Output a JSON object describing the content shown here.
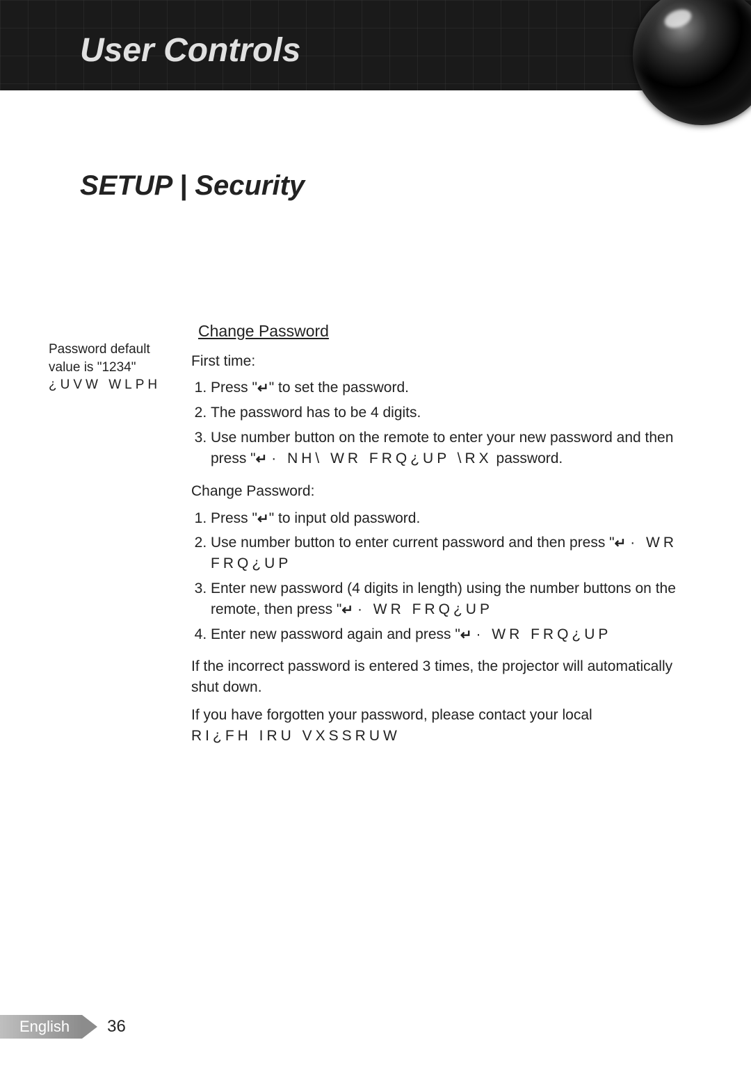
{
  "header": {
    "title": "User Controls"
  },
  "section": {
    "title": "SETUP | Security"
  },
  "sidebar": {
    "note_line1": "Password default value is \"1234\"",
    "note_garbled": "¿UVW WLPH"
  },
  "main": {
    "heading": "Change Password",
    "first_time_label": "First time:",
    "first_time_steps": {
      "s1_a": "Press \"",
      "s1_b": "\" to set the password.",
      "s2": "The password has to be 4 digits.",
      "s3_a": "Use number button on the remote to enter your new password and then press \"",
      "s3_b": "· NH\\ WR FRQ¿UP \\RX",
      "s3_c": "password."
    },
    "change_label": "Change Password:",
    "change_steps": {
      "s1_a": "Press \"",
      "s1_b": "\" to input old password.",
      "s2_a": "Use number button to enter current password and then press \"",
      "s2_b": "· WR FRQ¿UP",
      "s3_a": "Enter new password (4 digits in length) using the number buttons on the remote, then press \"",
      "s3_b": "· WR FRQ¿UP",
      "s4_a": "Enter new password again and press \"",
      "s4_b": "· WR FRQ¿UP"
    },
    "note_incorrect": "If the incorrect password is entered 3 times, the projector will automatically shut down.",
    "note_forgot_a": "If you have forgotten your password, please contact your local",
    "note_forgot_b": "RI¿FH IRU VXSSRUW"
  },
  "footer": {
    "language": "English",
    "page": "36"
  },
  "icons": {
    "enter": "↵"
  },
  "colors": {
    "header_bg": "#1a1a1a",
    "header_text": "#e0e0e0",
    "body_text": "#222222",
    "pill_gradient_start": "#bfbfbf",
    "pill_gradient_end": "#8c8c8c"
  },
  "typography": {
    "header_title_pt": 48,
    "section_title_pt": 40,
    "body_pt": 21,
    "heading_pt": 23,
    "footer_pt": 22
  }
}
